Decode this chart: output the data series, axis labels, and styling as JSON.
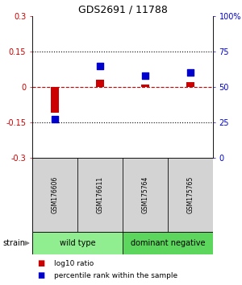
{
  "title": "GDS2691 / 11788",
  "samples": [
    "GSM176606",
    "GSM176611",
    "GSM175764",
    "GSM175765"
  ],
  "log10_ratio": [
    -0.11,
    0.03,
    0.01,
    0.02
  ],
  "percentile_rank": [
    27,
    65,
    58,
    60
  ],
  "groups": [
    {
      "label": "wild type",
      "indices": [
        0,
        1
      ],
      "color": "#90ee90"
    },
    {
      "label": "dominant negative",
      "indices": [
        2,
        3
      ],
      "color": "#5cd65c"
    }
  ],
  "ylim_left": [
    -0.3,
    0.3
  ],
  "ylim_right": [
    0,
    100
  ],
  "yticks_left": [
    -0.3,
    -0.15,
    0,
    0.15,
    0.3
  ],
  "ytick_labels_left": [
    "-0.3",
    "-0.15",
    "0",
    "0.15",
    "0.3"
  ],
  "yticks_right": [
    0,
    25,
    50,
    75,
    100
  ],
  "ytick_labels_right": [
    "0",
    "25",
    "50",
    "75",
    "100%"
  ],
  "hlines_dotted": [
    -0.15,
    0.15
  ],
  "hline_dashed": 0,
  "red_color": "#cc0000",
  "blue_color": "#0000cc",
  "bar_width": 0.18,
  "sq_size": 40,
  "legend_red": "log10 ratio",
  "legend_blue": "percentile rank within the sample",
  "strain_label": "strain",
  "bg_color": "#d3d3d3",
  "title_fontsize": 9,
  "tick_fontsize": 7,
  "label_fontsize": 6,
  "group_label_fontsize": 7,
  "sample_fontsize": 5.5
}
